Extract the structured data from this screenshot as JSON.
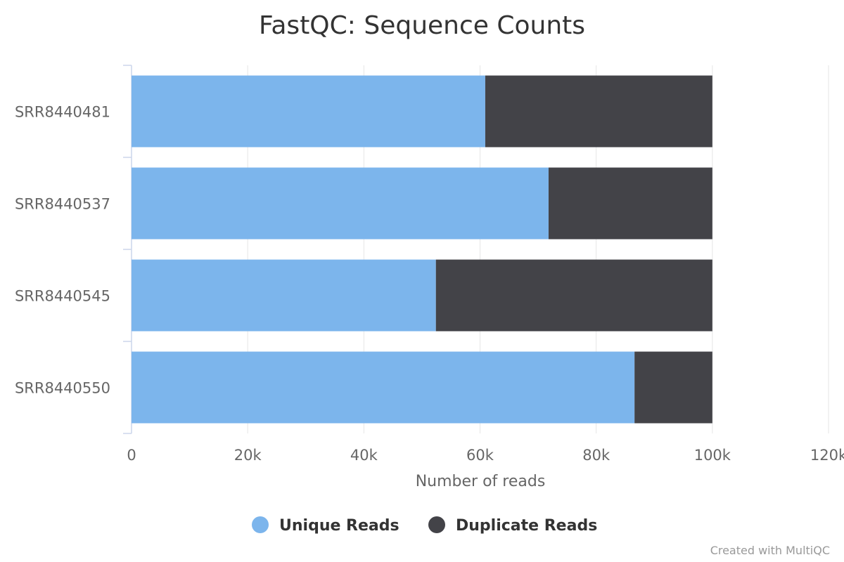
{
  "chart_data": {
    "type": "bar",
    "orientation": "horizontal",
    "stacked": true,
    "title": "FastQC: Sequence Counts",
    "xlabel": "Number of reads",
    "ylabel": "",
    "xlim": [
      0,
      120000
    ],
    "x_ticks": [
      0,
      20000,
      40000,
      60000,
      80000,
      100000,
      120000
    ],
    "x_tick_labels": [
      "0",
      "20k",
      "40k",
      "60k",
      "80k",
      "100k",
      "120k"
    ],
    "categories": [
      "SRR8440481",
      "SRR8440537",
      "SRR8440545",
      "SRR8440550"
    ],
    "series": [
      {
        "name": "Unique Reads",
        "color": "#7cb5ec",
        "values": [
          60900,
          71800,
          52400,
          86600
        ]
      },
      {
        "name": "Duplicate Reads",
        "color": "#434348",
        "values": [
          39100,
          28200,
          47600,
          13400
        ]
      }
    ],
    "grid": true,
    "legend_position": "bottom-center",
    "credit": "Created with MultiQC"
  }
}
